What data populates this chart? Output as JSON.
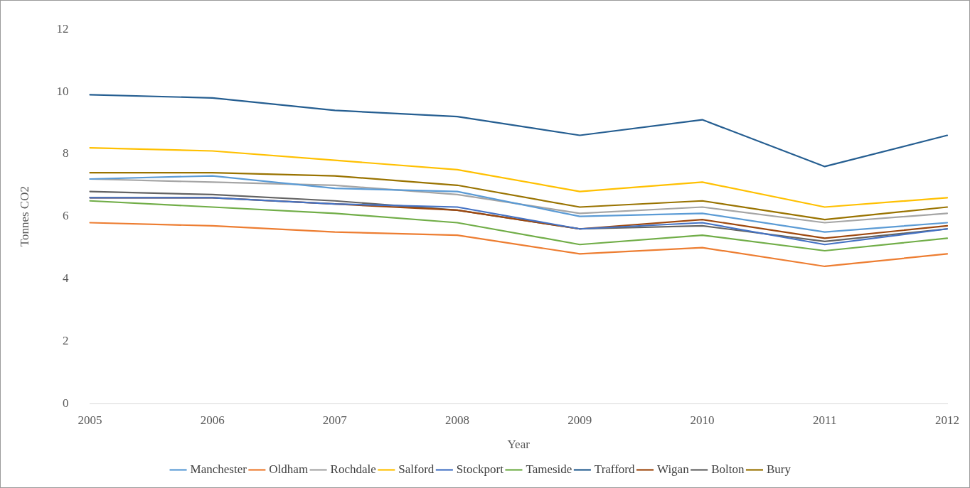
{
  "chart_data": {
    "type": "line",
    "xlabel": "Year",
    "ylabel": "Tonnes CO2",
    "categories": [
      "2005",
      "2006",
      "2007",
      "2008",
      "2009",
      "2010",
      "2011",
      "2012"
    ],
    "ylim": [
      0,
      12
    ],
    "yticks": [
      0,
      2,
      4,
      6,
      8,
      10,
      12
    ],
    "grid": false,
    "legend": "bottom",
    "marker": "none",
    "line_style": "solid",
    "series": [
      {
        "name": "Manchester",
        "color": "#5b9bd5",
        "values": [
          7.2,
          7.3,
          6.9,
          6.8,
          6.0,
          6.1,
          5.5,
          5.8
        ]
      },
      {
        "name": "Oldham",
        "color": "#ed7d31",
        "values": [
          5.8,
          5.7,
          5.5,
          5.4,
          4.8,
          5.0,
          4.4,
          4.8
        ]
      },
      {
        "name": "Rochdale",
        "color": "#a5a5a5",
        "values": [
          7.2,
          7.1,
          7.0,
          6.7,
          6.1,
          6.3,
          5.8,
          6.1
        ]
      },
      {
        "name": "Salford",
        "color": "#ffc000",
        "values": [
          8.2,
          8.1,
          7.8,
          7.5,
          6.8,
          7.1,
          6.3,
          6.6
        ]
      },
      {
        "name": "Stockport",
        "color": "#4472c4",
        "values": [
          6.6,
          6.6,
          6.4,
          6.3,
          5.6,
          5.8,
          5.1,
          5.6
        ]
      },
      {
        "name": "Tameside",
        "color": "#70ad47",
        "values": [
          6.5,
          6.3,
          6.1,
          5.8,
          5.1,
          5.4,
          4.9,
          5.3
        ]
      },
      {
        "name": "Trafford",
        "color": "#255e91",
        "values": [
          9.9,
          9.8,
          9.4,
          9.2,
          8.6,
          9.1,
          7.6,
          8.6
        ]
      },
      {
        "name": "Wigan",
        "color": "#9e480e",
        "values": [
          6.6,
          6.6,
          6.4,
          6.2,
          5.6,
          5.9,
          5.3,
          5.7
        ]
      },
      {
        "name": "Bolton",
        "color": "#636363",
        "values": [
          6.8,
          6.7,
          6.5,
          6.2,
          5.6,
          5.7,
          5.2,
          5.6
        ]
      },
      {
        "name": "Bury",
        "color": "#997300",
        "values": [
          7.4,
          7.4,
          7.3,
          7.0,
          6.3,
          6.5,
          5.9,
          6.3
        ]
      }
    ]
  }
}
